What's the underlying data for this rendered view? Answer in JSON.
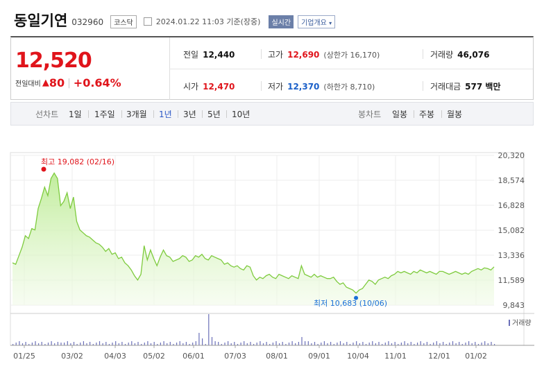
{
  "header": {
    "company_name": "동일기연",
    "stock_code": "032960",
    "market": "코스닥",
    "timestamp": "2024.01.22 11:03  기준(장중)",
    "realtime_label": "실시간",
    "overview_label": "기업개요"
  },
  "quote": {
    "price": "12,520",
    "change_label": "전일대비",
    "change": "80",
    "change_pct": "+0.64%",
    "prev_close_label": "전일",
    "prev_close": "12,440",
    "high_label": "고가",
    "high": "12,690",
    "upper_limit": "(상한가 16,170)",
    "volume_label": "거래량",
    "volume": "46,076",
    "open_label": "시가",
    "open": "12,470",
    "low_label": "저가",
    "low": "12,370",
    "lower_limit": "(하한가 8,710)",
    "trade_value_label": "거래대금",
    "trade_value": "577 백만"
  },
  "tabs": {
    "line_chart_label": "선차트",
    "line_periods": [
      "1일",
      "1주일",
      "3개월",
      "1년",
      "3년",
      "5년",
      "10년"
    ],
    "active_period": "1년",
    "candle_chart_label": "봉차트",
    "candle_periods": [
      "일봉",
      "주봉",
      "월봉"
    ]
  },
  "chart_data": {
    "type": "area",
    "y_ticks": [
      "20,320",
      "18,574",
      "16,828",
      "15,082",
      "13,336",
      "11,589",
      "9,843"
    ],
    "ylim": [
      9843,
      20320
    ],
    "x_ticks": [
      "01/25",
      "03/02",
      "04/03",
      "05/02",
      "06/01",
      "07/03",
      "08/01",
      "09/01",
      "10/04",
      "11/01",
      "12/01",
      "01/02"
    ],
    "high_annotation": "최고 19,082 (02/16)",
    "low_annotation": "최저 10,683 (10/06)",
    "volume_legend": "거래량",
    "line_color": "#7ecb3e",
    "high_color": "#e0141b",
    "low_color": "#1a6fd8",
    "price": [
      12800,
      12700,
      13300,
      13900,
      14700,
      14500,
      15200,
      15100,
      16600,
      17300,
      18100,
      17500,
      18700,
      19082,
      18700,
      16800,
      17100,
      17700,
      16600,
      17400,
      15700,
      15100,
      14900,
      14700,
      14600,
      14400,
      14200,
      14100,
      13900,
      13600,
      13800,
      13400,
      13500,
      13100,
      13200,
      12800,
      12600,
      12300,
      11900,
      11600,
      12000,
      14000,
      13000,
      13700,
      13100,
      12600,
      13200,
      13700,
      13300,
      13200,
      12900,
      13000,
      13100,
      13300,
      13200,
      12900,
      13000,
      13300,
      13200,
      13400,
      13100,
      13000,
      13300,
      13200,
      13100,
      13000,
      12700,
      12800,
      12600,
      12500,
      12600,
      12400,
      12300,
      12600,
      12500,
      11900,
      11600,
      11800,
      11700,
      11900,
      12000,
      11800,
      11700,
      12000,
      11900,
      11800,
      11700,
      11900,
      11800,
      11700,
      12600,
      12000,
      11900,
      11800,
      12000,
      11800,
      11900,
      11800,
      11700,
      11700,
      11800,
      11500,
      11300,
      11400,
      11100,
      11000,
      10900,
      10683,
      10900,
      11000,
      11300,
      11600,
      11500,
      11300,
      11600,
      11700,
      11800,
      11700,
      11900,
      12000,
      12200,
      12100,
      12200,
      12100,
      12000,
      12200,
      12100,
      12300,
      12200,
      12100,
      12200,
      12100,
      12000,
      12200,
      12200,
      12100,
      12000,
      12100,
      12200,
      12100,
      12000,
      12100,
      12000,
      12200,
      12300,
      12400,
      12300,
      12450,
      12400,
      12300,
      12520
    ]
  }
}
